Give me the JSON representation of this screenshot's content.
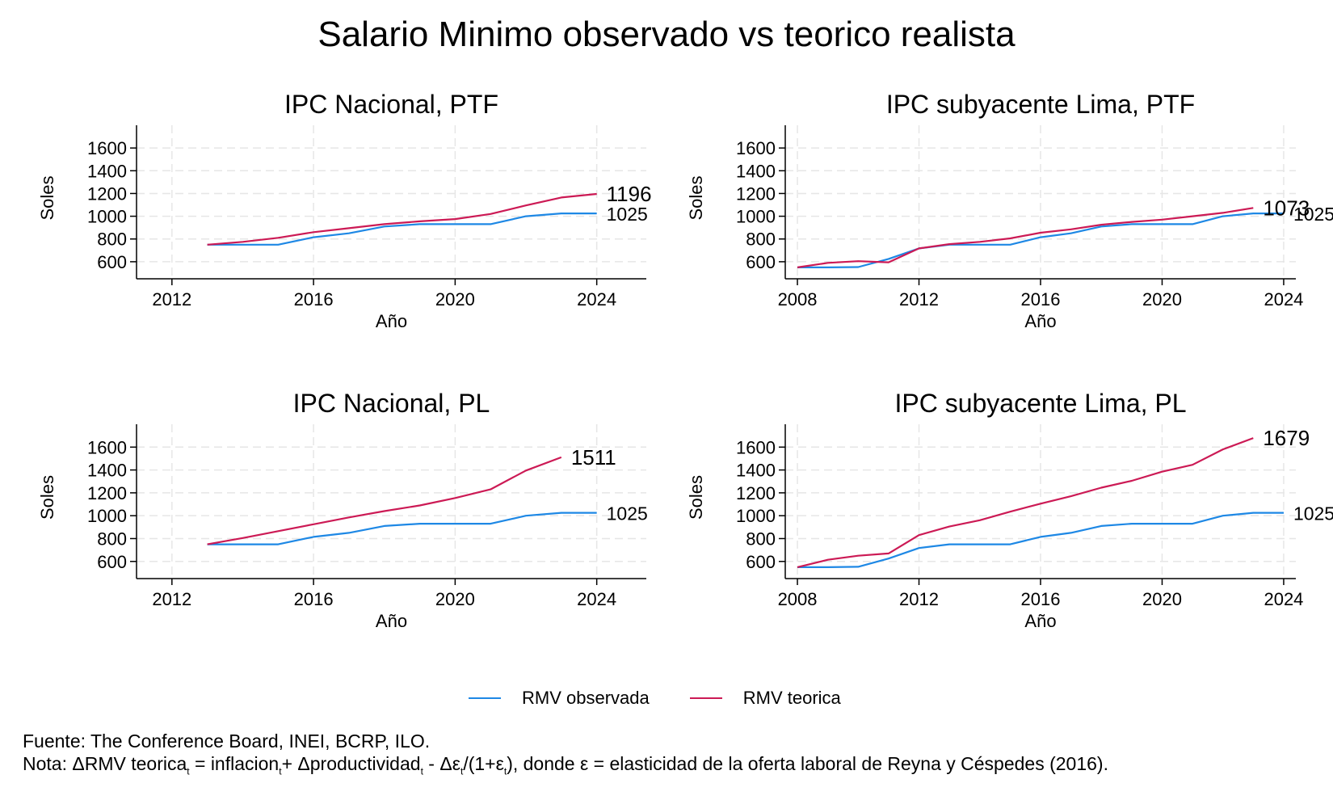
{
  "title": "Salario Minimo observado vs teorico realista",
  "colors": {
    "observada": "#1e88e5",
    "teorica": "#cc1a55",
    "grid": "#e6e6e6",
    "axis": "#000000"
  },
  "legend": [
    {
      "label": "RMV observada",
      "color": "#1e88e5"
    },
    {
      "label": "RMV teorica",
      "color": "#cc1a55"
    }
  ],
  "source_text": "Fuente: The Conference Board, INEI, BCRP, ILO.",
  "note": {
    "prefix": "Nota: ΔRMV teorica",
    "sub1": "t",
    "part2": " = inflacion",
    "sub2": "t",
    "part3": "+ Δproductividad",
    "sub3": "t",
    "part4": " - Δε",
    "sub4": "t",
    "part5": "/(1+ε",
    "sub5": "t",
    "part6": "), donde ε = elasticidad de la oferta laboral de Reyna y Céspedes (2016)."
  },
  "chart_data": [
    {
      "type": "line",
      "title": "IPC Nacional, PTF",
      "xlabel": "Año",
      "ylabel": "Soles",
      "xlim": [
        2011,
        2025.4
      ],
      "ylim": [
        450,
        1800
      ],
      "xticks": [
        2012,
        2016,
        2020,
        2024
      ],
      "yticks": [
        600,
        800,
        1000,
        1200,
        1400,
        1600
      ],
      "grid": true,
      "series": [
        {
          "name": "RMV observada",
          "end_label": "1025",
          "x": [
            2013,
            2014,
            2015,
            2016,
            2017,
            2018,
            2019,
            2020,
            2021,
            2022,
            2023,
            2024
          ],
          "y": [
            750,
            750,
            750,
            815,
            850,
            910,
            930,
            930,
            930,
            1000,
            1025,
            1025
          ]
        },
        {
          "name": "RMV teorica",
          "end_label": "1196",
          "x": [
            2013,
            2014,
            2015,
            2016,
            2017,
            2018,
            2019,
            2020,
            2021,
            2022,
            2023,
            2024
          ],
          "y": [
            750,
            775,
            810,
            860,
            895,
            930,
            955,
            975,
            1020,
            1095,
            1165,
            1196
          ]
        }
      ]
    },
    {
      "type": "line",
      "title": "IPC subyacente Lima, PTF",
      "xlabel": "Año",
      "ylabel": "Soles",
      "xlim": [
        2007.6,
        2024.4
      ],
      "ylim": [
        450,
        1800
      ],
      "xticks": [
        2008,
        2012,
        2016,
        2020,
        2024
      ],
      "yticks": [
        600,
        800,
        1000,
        1200,
        1400,
        1600
      ],
      "grid": true,
      "series": [
        {
          "name": "RMV observada",
          "end_label": "1025",
          "x": [
            2008,
            2009,
            2010,
            2011,
            2012,
            2013,
            2014,
            2015,
            2016,
            2017,
            2018,
            2019,
            2020,
            2021,
            2022,
            2023,
            2024
          ],
          "y": [
            550,
            550,
            553,
            625,
            717,
            750,
            750,
            750,
            815,
            850,
            910,
            930,
            930,
            930,
            1000,
            1025,
            1025
          ]
        },
        {
          "name": "RMV teorica",
          "end_label": "1073",
          "x": [
            2008,
            2009,
            2010,
            2011,
            2012,
            2013,
            2014,
            2015,
            2016,
            2017,
            2018,
            2019,
            2020,
            2021,
            2022,
            2023
          ],
          "y": [
            550,
            590,
            605,
            595,
            717,
            755,
            775,
            805,
            855,
            885,
            925,
            950,
            970,
            1000,
            1030,
            1073
          ]
        }
      ]
    },
    {
      "type": "line",
      "title": "IPC Nacional, PL",
      "xlabel": "Año",
      "ylabel": "Soles",
      "xlim": [
        2011,
        2025.4
      ],
      "ylim": [
        450,
        1800
      ],
      "xticks": [
        2012,
        2016,
        2020,
        2024
      ],
      "yticks": [
        600,
        800,
        1000,
        1200,
        1400,
        1600
      ],
      "grid": true,
      "series": [
        {
          "name": "RMV observada",
          "end_label": "1025",
          "x": [
            2013,
            2014,
            2015,
            2016,
            2017,
            2018,
            2019,
            2020,
            2021,
            2022,
            2023,
            2024
          ],
          "y": [
            750,
            750,
            750,
            815,
            850,
            910,
            930,
            930,
            930,
            1000,
            1025,
            1025
          ]
        },
        {
          "name": "RMV teorica",
          "end_label": "1511",
          "x": [
            2013,
            2014,
            2015,
            2016,
            2017,
            2018,
            2019,
            2020,
            2021,
            2022,
            2023
          ],
          "y": [
            750,
            805,
            865,
            925,
            985,
            1040,
            1090,
            1155,
            1230,
            1395,
            1511
          ]
        }
      ]
    },
    {
      "type": "line",
      "title": "IPC subyacente Lima, PL",
      "xlabel": "Año",
      "ylabel": "Soles",
      "xlim": [
        2007.6,
        2024.4
      ],
      "ylim": [
        450,
        1800
      ],
      "xticks": [
        2008,
        2012,
        2016,
        2020,
        2024
      ],
      "yticks": [
        600,
        800,
        1000,
        1200,
        1400,
        1600
      ],
      "grid": true,
      "series": [
        {
          "name": "RMV observada",
          "end_label": "1025",
          "x": [
            2008,
            2009,
            2010,
            2011,
            2012,
            2013,
            2014,
            2015,
            2016,
            2017,
            2018,
            2019,
            2020,
            2021,
            2022,
            2023,
            2024
          ],
          "y": [
            550,
            550,
            553,
            625,
            717,
            750,
            750,
            750,
            815,
            850,
            910,
            930,
            930,
            930,
            1000,
            1025,
            1025
          ]
        },
        {
          "name": "RMV teorica",
          "end_label": "1679",
          "x": [
            2008,
            2009,
            2010,
            2011,
            2012,
            2013,
            2014,
            2015,
            2016,
            2017,
            2018,
            2019,
            2020,
            2021,
            2022,
            2023
          ],
          "y": [
            550,
            615,
            650,
            670,
            830,
            905,
            960,
            1035,
            1105,
            1170,
            1245,
            1305,
            1385,
            1445,
            1580,
            1679
          ]
        }
      ]
    }
  ]
}
